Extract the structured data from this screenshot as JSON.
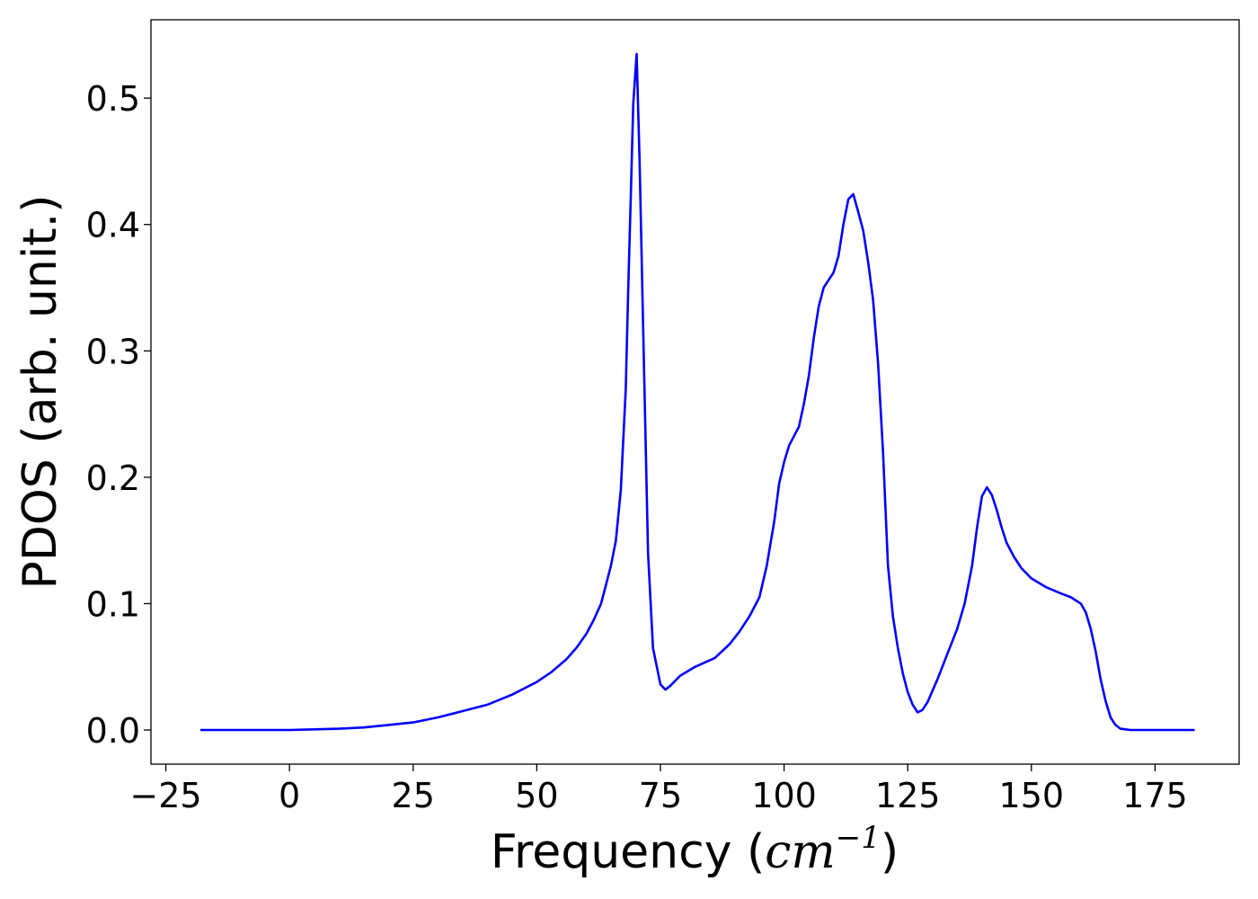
{
  "chart_data": {
    "type": "line",
    "title": "",
    "xlabel_prefix": "Frequency (",
    "xlabel_unit_base": "cm",
    "xlabel_unit_exp": "−1",
    "xlabel_suffix": ")",
    "ylabel": "PDOS (arb. unit.)",
    "xlim": [
      -28,
      192
    ],
    "ylim": [
      -0.027,
      0.562
    ],
    "xticks": [
      -25,
      0,
      25,
      50,
      75,
      100,
      125,
      150,
      175
    ],
    "xtick_labels": [
      "−25",
      "0",
      "25",
      "50",
      "75",
      "100",
      "125",
      "150",
      "175"
    ],
    "yticks": [
      0.0,
      0.1,
      0.2,
      0.3,
      0.4,
      0.5
    ],
    "ytick_labels": [
      "0.0",
      "0.1",
      "0.2",
      "0.3",
      "0.4",
      "0.5"
    ],
    "grid": false,
    "legend": false,
    "series": [
      {
        "color": "#0000ff",
        "points": [
          [
            -18,
            0.0
          ],
          [
            -10,
            0.0
          ],
          [
            0,
            0.0
          ],
          [
            5,
            0.0005
          ],
          [
            10,
            0.001
          ],
          [
            15,
            0.002
          ],
          [
            20,
            0.004
          ],
          [
            25,
            0.006
          ],
          [
            30,
            0.01
          ],
          [
            35,
            0.015
          ],
          [
            40,
            0.02
          ],
          [
            45,
            0.028
          ],
          [
            50,
            0.038
          ],
          [
            53,
            0.046
          ],
          [
            56,
            0.056
          ],
          [
            58,
            0.065
          ],
          [
            60,
            0.076
          ],
          [
            61.5,
            0.087
          ],
          [
            63,
            0.1
          ],
          [
            64,
            0.115
          ],
          [
            65,
            0.13
          ],
          [
            66,
            0.15
          ],
          [
            67,
            0.19
          ],
          [
            68,
            0.27
          ],
          [
            68.5,
            0.35
          ],
          [
            69,
            0.42
          ],
          [
            69.5,
            0.495
          ],
          [
            70.2,
            0.535
          ],
          [
            70.8,
            0.45
          ],
          [
            71.5,
            0.32
          ],
          [
            72.5,
            0.14
          ],
          [
            73.5,
            0.065
          ],
          [
            75,
            0.036
          ],
          [
            76,
            0.032
          ],
          [
            77,
            0.035
          ],
          [
            79,
            0.043
          ],
          [
            82,
            0.05
          ],
          [
            86,
            0.057
          ],
          [
            89,
            0.068
          ],
          [
            91,
            0.078
          ],
          [
            93,
            0.09
          ],
          [
            95,
            0.105
          ],
          [
            96.5,
            0.13
          ],
          [
            98,
            0.165
          ],
          [
            99,
            0.195
          ],
          [
            100,
            0.212
          ],
          [
            101,
            0.225
          ],
          [
            103,
            0.24
          ],
          [
            104,
            0.258
          ],
          [
            105,
            0.28
          ],
          [
            106,
            0.31
          ],
          [
            107,
            0.335
          ],
          [
            108,
            0.35
          ],
          [
            110,
            0.362
          ],
          [
            111,
            0.375
          ],
          [
            112,
            0.4
          ],
          [
            113,
            0.42
          ],
          [
            114,
            0.424
          ],
          [
            115,
            0.41
          ],
          [
            116,
            0.395
          ],
          [
            117,
            0.37
          ],
          [
            118,
            0.34
          ],
          [
            119,
            0.29
          ],
          [
            120,
            0.22
          ],
          [
            121,
            0.13
          ],
          [
            122,
            0.09
          ],
          [
            123,
            0.065
          ],
          [
            124,
            0.045
          ],
          [
            125,
            0.03
          ],
          [
            126,
            0.02
          ],
          [
            127,
            0.014
          ],
          [
            128,
            0.016
          ],
          [
            129,
            0.022
          ],
          [
            131,
            0.04
          ],
          [
            133,
            0.06
          ],
          [
            135,
            0.08
          ],
          [
            136.5,
            0.1
          ],
          [
            138,
            0.13
          ],
          [
            139,
            0.16
          ],
          [
            140,
            0.185
          ],
          [
            141,
            0.192
          ],
          [
            142,
            0.186
          ],
          [
            143,
            0.174
          ],
          [
            144,
            0.16
          ],
          [
            145,
            0.148
          ],
          [
            146.5,
            0.137
          ],
          [
            148,
            0.128
          ],
          [
            150,
            0.12
          ],
          [
            153,
            0.113
          ],
          [
            156,
            0.108
          ],
          [
            158,
            0.105
          ],
          [
            160,
            0.1
          ],
          [
            161,
            0.093
          ],
          [
            162,
            0.08
          ],
          [
            163,
            0.062
          ],
          [
            164,
            0.04
          ],
          [
            165,
            0.023
          ],
          [
            166,
            0.01
          ],
          [
            167,
            0.004
          ],
          [
            168,
            0.001
          ],
          [
            170,
            0.0
          ],
          [
            175,
            0.0
          ],
          [
            183,
            0.0
          ]
        ]
      }
    ]
  }
}
